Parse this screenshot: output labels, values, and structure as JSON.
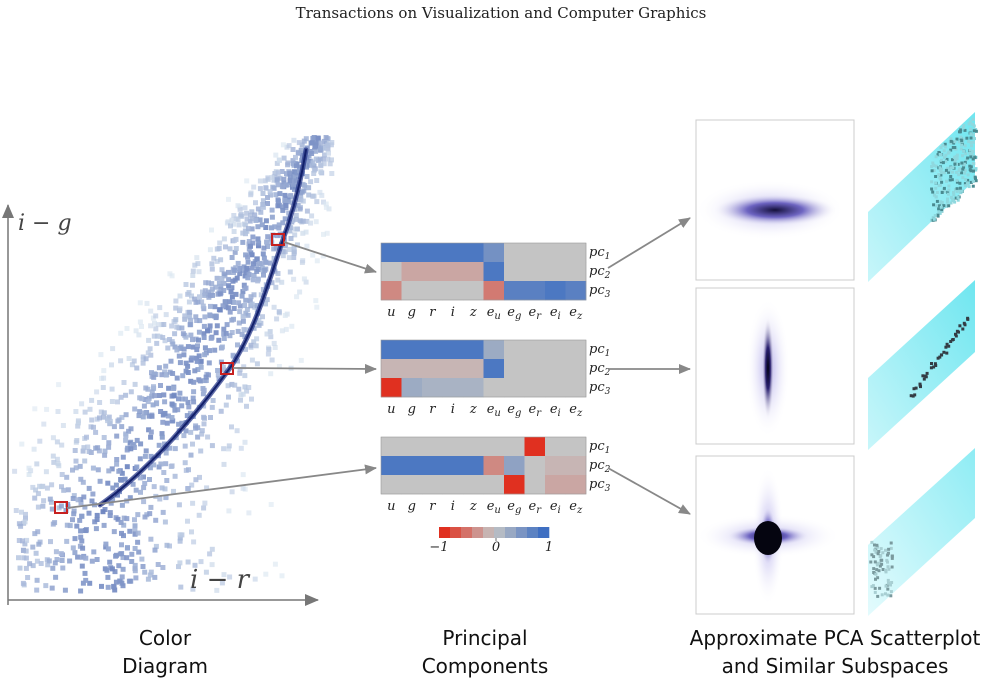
{
  "header": "Transactions on Visualization and Computer Graphics",
  "axes": {
    "x_label": "i − r",
    "y_label": "i − g"
  },
  "captions": {
    "left": [
      "Color",
      "Diagram"
    ],
    "middle": [
      "Principal",
      "Components"
    ],
    "right": [
      "Approximate PCA Scatterplot",
      "and Similar  Subspaces"
    ]
  },
  "heatmap": {
    "columns": [
      "u",
      "g",
      "r",
      "i",
      "z",
      "eu",
      "eg",
      "er",
      "ei",
      "ez"
    ],
    "rows": [
      "pc1",
      "pc2",
      "pc3"
    ],
    "colorbar": {
      "min_label": "−1",
      "mid_label": "0",
      "max_label": "1"
    },
    "matrices": [
      [
        [
          0.9,
          0.9,
          0.9,
          0.9,
          0.9,
          0.6,
          0,
          0,
          0,
          0
        ],
        [
          0,
          -0.2,
          -0.2,
          -0.2,
          -0.2,
          0.9,
          0,
          0,
          0,
          0
        ],
        [
          -0.4,
          0,
          0,
          0,
          0,
          -0.5,
          0.8,
          0.8,
          0.9,
          0.8
        ]
      ],
      [
        [
          0.9,
          0.9,
          0.9,
          0.9,
          0.9,
          0.3,
          0,
          0,
          0,
          0
        ],
        [
          -0.1,
          -0.1,
          -0.1,
          -0.1,
          -0.1,
          0.9,
          0,
          0,
          0,
          0
        ],
        [
          -1,
          0.3,
          0.2,
          0.2,
          0.2,
          0,
          0,
          0,
          0,
          0
        ]
      ],
      [
        [
          0,
          0,
          0,
          0,
          0,
          0,
          0,
          -1,
          0,
          0
        ],
        [
          0.9,
          0.9,
          0.9,
          0.9,
          0.9,
          -0.4,
          0.4,
          0,
          -0.1,
          -0.1
        ],
        [
          0,
          0,
          0,
          0,
          0,
          0,
          -1,
          0,
          -0.2,
          -0.2
        ]
      ]
    ]
  },
  "colors": {
    "negative": "#e03020",
    "neutral": "#c4c4c4",
    "positive": "#3f6fc2",
    "marker": "#c62020",
    "arrow": "#888888",
    "cyan": "#7fe8f2",
    "purple": "#6a60c8"
  }
}
